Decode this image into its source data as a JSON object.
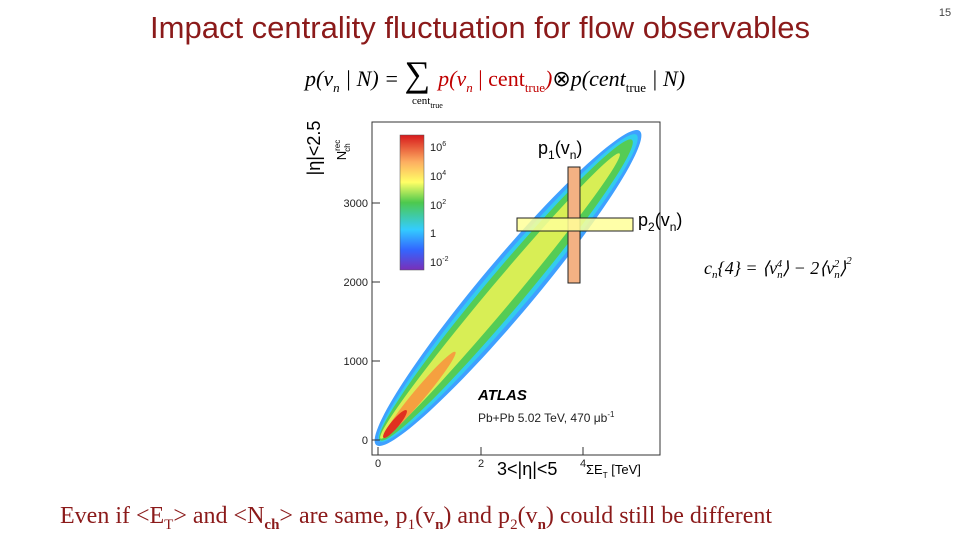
{
  "page_number": "15",
  "title": "Impact centrality fluctuation for flow observables",
  "formula": {
    "lhs": [
      "p(v",
      "n",
      " | N) = "
    ],
    "sum": "∑",
    "sum_sub": [
      "cent",
      "true"
    ],
    "term1": [
      "p(v",
      "n",
      " | cent",
      "true",
      ")"
    ],
    "op": "⊗",
    "term2": [
      "p(cent",
      "true",
      " | N)"
    ]
  },
  "plot": {
    "y_label": "|η|<2.5",
    "y_axis_title": [
      "N",
      "rec",
      "ch"
    ],
    "y_ticks": [
      "0",
      "1000",
      "2000",
      "3000"
    ],
    "x_ticks": [
      "0",
      "2",
      "4"
    ],
    "x_axis_title": [
      "ΣE",
      "T",
      " [TeV]"
    ],
    "x_label": "3<|η|<5",
    "colorbar": [
      [
        "10",
        "6"
      ],
      [
        "10",
        "4"
      ],
      [
        "10",
        "2"
      ],
      [
        "1"
      ],
      [
        "10",
        "-2"
      ]
    ],
    "experiment": "ATLAS",
    "dataset": [
      "Pb+Pb 5.02 TeV, 470 μb",
      "-1"
    ]
  },
  "annotations": {
    "p1": [
      "p",
      "1",
      "(v",
      "n",
      ")"
    ],
    "p2": [
      "p",
      "2",
      "(v",
      "n",
      ")"
    ],
    "cumulant": [
      "c",
      "n",
      "{4}  =  ⟨v",
      "n",
      "4",
      "⟩ − 2⟨v",
      "n",
      "2",
      "⟩",
      "2"
    ]
  },
  "footer": [
    "Even if  <E",
    "T",
    "> and <N",
    "ch",
    "> are same, p",
    "1",
    "(v",
    "n",
    ") and p",
    "2",
    "(v",
    "n",
    ") could still be different"
  ]
}
